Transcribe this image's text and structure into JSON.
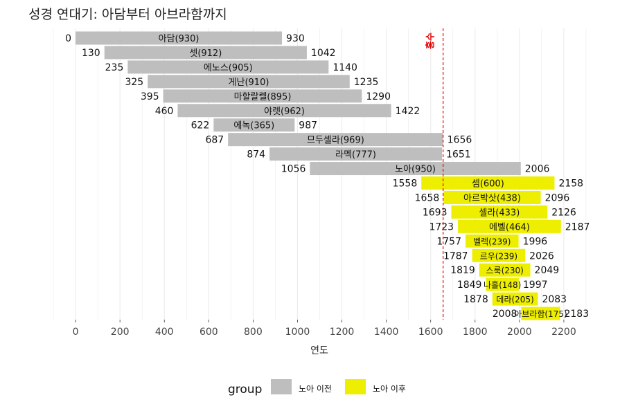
{
  "colors": {
    "before": "#bebebe",
    "after": "#eeee00",
    "flood_line": "#e00000",
    "grid": "#ebebeb"
  },
  "chart_data": {
    "type": "bar",
    "orientation": "horizontal-range",
    "title": "성경 연대기: 아담부터 아브라함까지",
    "xlabel": "연도",
    "xlim": [
      -200,
      2400
    ],
    "xticks": [
      "0",
      "200",
      "400",
      "600",
      "800",
      "1000",
      "1200",
      "1400",
      "1600",
      "1800",
      "2000",
      "2200"
    ],
    "flood_year": 1656,
    "flood_label": "홍수",
    "legend": {
      "title": "group",
      "placement": "bottom",
      "items": [
        "노아 이전",
        "노아 이후"
      ]
    },
    "series": [
      {
        "name": "아담",
        "start": 0,
        "end": 930,
        "label": "아담(930)",
        "start_label": "0",
        "end_label": "930",
        "group": "before"
      },
      {
        "name": "셋",
        "start": 130,
        "end": 1042,
        "label": "셋(912)",
        "start_label": "130",
        "end_label": "1042",
        "group": "before"
      },
      {
        "name": "에노스",
        "start": 235,
        "end": 1140,
        "label": "에노스(905)",
        "start_label": "235",
        "end_label": "1140",
        "group": "before"
      },
      {
        "name": "게난",
        "start": 325,
        "end": 1235,
        "label": "게난(910)",
        "start_label": "325",
        "end_label": "1235",
        "group": "before"
      },
      {
        "name": "마할랄렐",
        "start": 395,
        "end": 1290,
        "label": "마할랄렐(895)",
        "start_label": "395",
        "end_label": "1290",
        "group": "before"
      },
      {
        "name": "야렛",
        "start": 460,
        "end": 1422,
        "label": "야렛(962)",
        "start_label": "460",
        "end_label": "1422",
        "group": "before"
      },
      {
        "name": "에녹",
        "start": 622,
        "end": 987,
        "label": "에녹(365)",
        "start_label": "622",
        "end_label": "987",
        "group": "before"
      },
      {
        "name": "므두셀라",
        "start": 687,
        "end": 1656,
        "label": "므두셀라(969)",
        "start_label": "687",
        "end_label": "1656",
        "group": "before"
      },
      {
        "name": "라멕",
        "start": 874,
        "end": 1651,
        "label": "라멕(777)",
        "start_label": "874",
        "end_label": "1651",
        "group": "before"
      },
      {
        "name": "노아",
        "start": 1056,
        "end": 2006,
        "label": "노아(950)",
        "start_label": "1056",
        "end_label": "2006",
        "group": "before"
      },
      {
        "name": "셈",
        "start": 1558,
        "end": 2158,
        "label": "셈(600)",
        "start_label": "1558",
        "end_label": "2158",
        "group": "after"
      },
      {
        "name": "아르박삿",
        "start": 1658,
        "end": 2096,
        "label": "아르박삿(438)",
        "start_label": "1658",
        "end_label": "2096",
        "group": "after"
      },
      {
        "name": "셀라",
        "start": 1693,
        "end": 2126,
        "label": "셀라(433)",
        "start_label": "1693",
        "end_label": "2126",
        "group": "after"
      },
      {
        "name": "에벨",
        "start": 1723,
        "end": 2187,
        "label": "에벨(464)",
        "start_label": "1723",
        "end_label": "2187",
        "group": "after"
      },
      {
        "name": "벨렉",
        "start": 1757,
        "end": 1996,
        "label": "벨렉(239)",
        "start_label": "1757",
        "end_label": "1996",
        "group": "after"
      },
      {
        "name": "르우",
        "start": 1787,
        "end": 2026,
        "label": "르우(239)",
        "start_label": "1787",
        "end_label": "2026",
        "group": "after"
      },
      {
        "name": "스룩",
        "start": 1819,
        "end": 2049,
        "label": "스룩(230)",
        "start_label": "1819",
        "end_label": "2049",
        "group": "after"
      },
      {
        "name": "나홀",
        "start": 1849,
        "end": 1997,
        "label": "나홀(148)",
        "start_label": "1849",
        "end_label": "1997",
        "group": "after"
      },
      {
        "name": "데라",
        "start": 1878,
        "end": 2083,
        "label": "데라(205)",
        "start_label": "1878",
        "end_label": "2083",
        "group": "after"
      },
      {
        "name": "아브라함",
        "start": 2008,
        "end": 2183,
        "label": "아브라함(175)",
        "start_label": "2008",
        "end_label": "2183",
        "group": "after"
      }
    ]
  }
}
